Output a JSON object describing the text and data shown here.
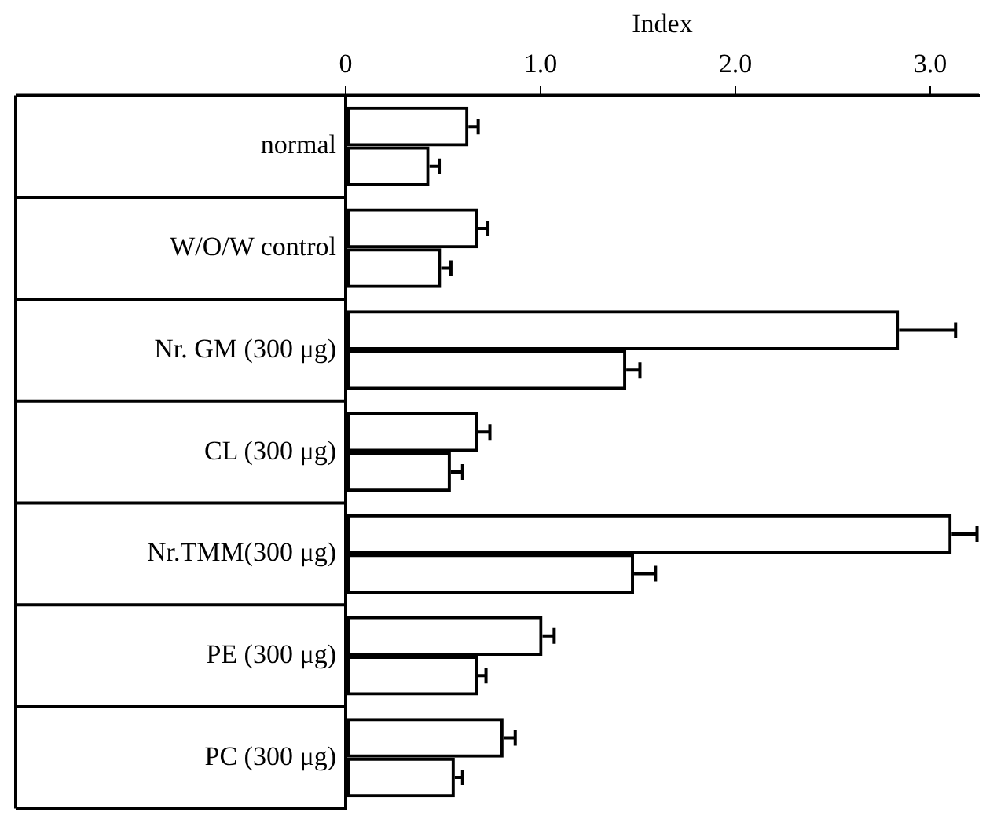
{
  "chart_data": {
    "type": "bar",
    "orientation": "horizontal",
    "xlabel": "Index",
    "categories": [
      "normal",
      "W/O/W control",
      "Nr. GM (300 μg)",
      "CL (300 μg)",
      "Nr.TMM(300 μg)",
      "PE (300 μg)",
      "PC (300 μg)"
    ],
    "series": [
      {
        "color": "#000000",
        "values": [
          0.63,
          0.68,
          2.84,
          0.68,
          3.11,
          1.01,
          0.81
        ],
        "errors": [
          [
            0.63,
            0.68
          ],
          [
            0.68,
            0.73
          ],
          [
            2.84,
            3.13
          ],
          [
            0.68,
            0.74
          ],
          [
            3.11,
            3.24
          ],
          [
            1.01,
            1.07
          ],
          [
            0.81,
            0.87
          ]
        ]
      },
      {
        "color": "#000000",
        "values": [
          0.43,
          0.49,
          1.44,
          0.54,
          1.48,
          0.68,
          0.56
        ],
        "errors": [
          [
            0.43,
            0.48
          ],
          [
            0.49,
            0.54
          ],
          [
            1.44,
            1.51
          ],
          [
            0.54,
            0.6
          ],
          [
            1.48,
            1.59
          ],
          [
            0.68,
            0.72
          ],
          [
            0.56,
            0.6
          ]
        ]
      }
    ],
    "xlim": [
      0,
      3.25
    ],
    "xticks": [
      0,
      {
        "value": 1,
        "label": "1.0"
      },
      {
        "value": 2,
        "label": "2.0"
      },
      {
        "value": 3,
        "label": "3.0"
      }
    ],
    "grid": false,
    "legend": false
  }
}
